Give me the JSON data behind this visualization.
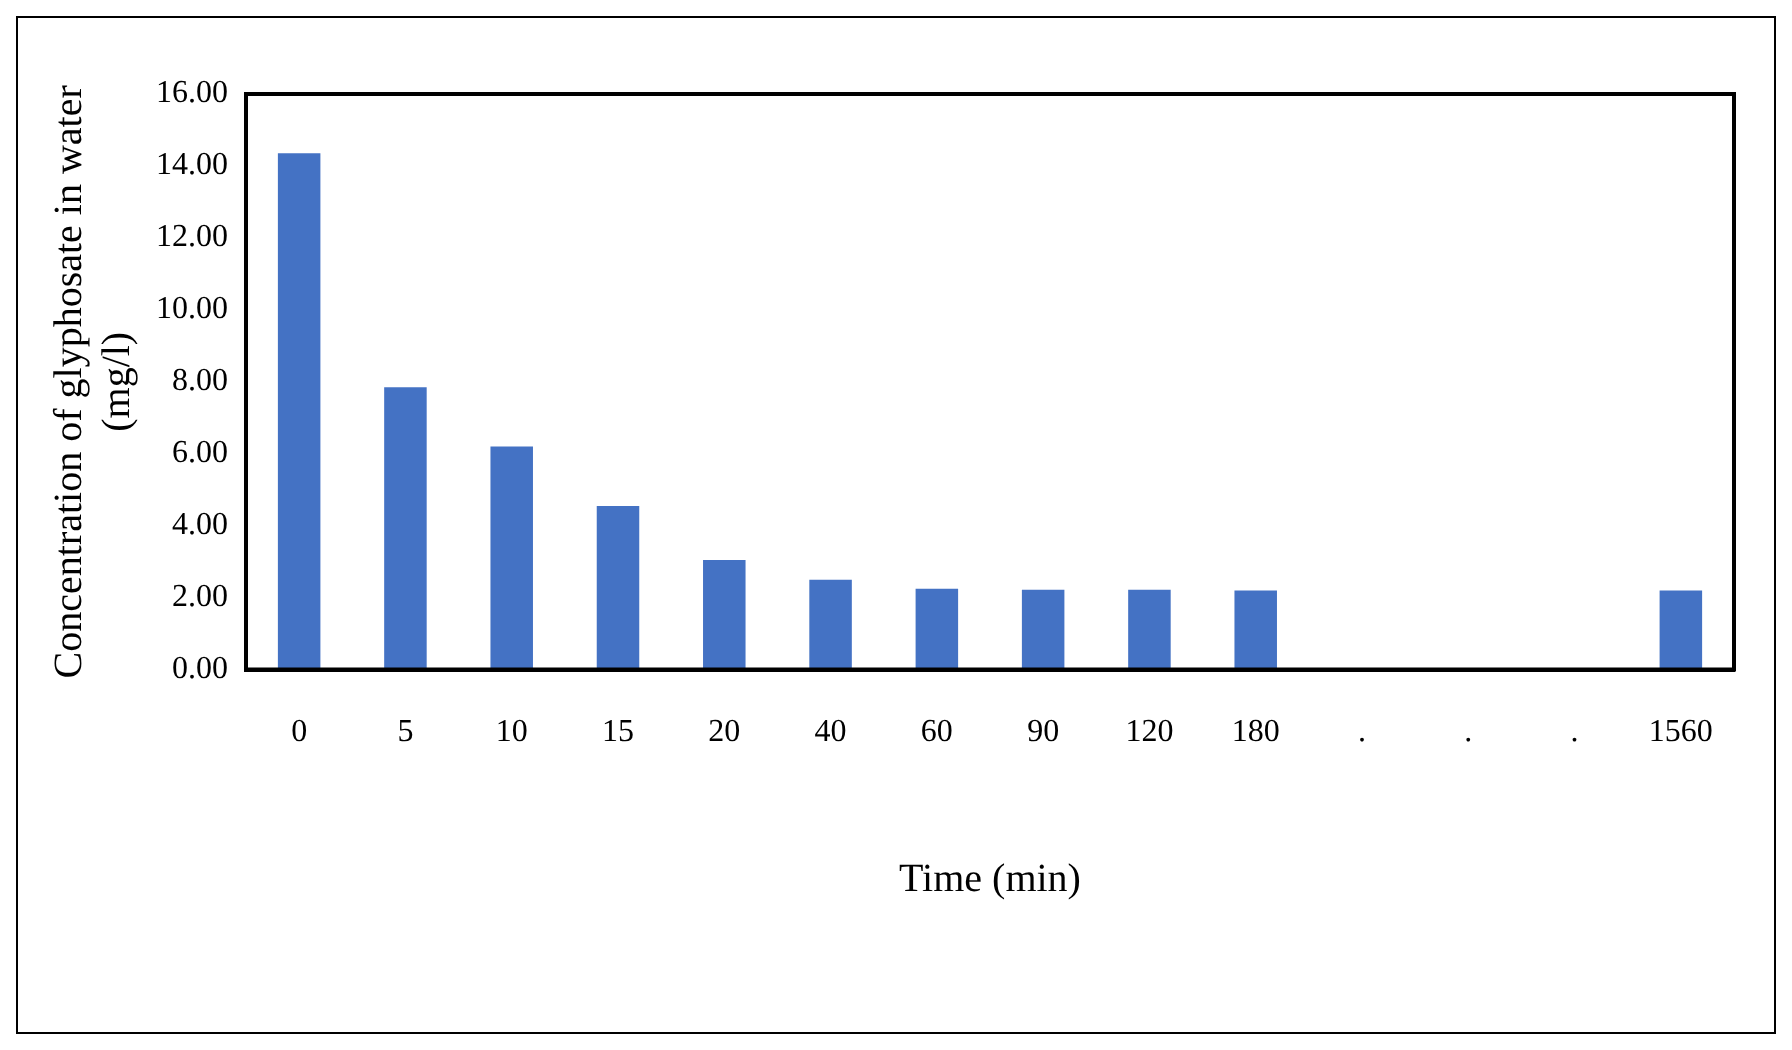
{
  "chart_data": {
    "type": "bar",
    "xlabel": "Time (min)",
    "ylabel": "Concentration of glyphosate in water\n(mg/l)",
    "categories": [
      "0",
      "5",
      "10",
      "15",
      "20",
      "40",
      "60",
      "90",
      "120",
      "180",
      ".",
      ".",
      ".",
      "1560"
    ],
    "values": [
      14.35,
      7.85,
      6.2,
      4.55,
      3.05,
      2.5,
      2.25,
      2.22,
      2.22,
      2.2,
      null,
      null,
      null,
      2.2
    ],
    "color": "#4472c4",
    "ylim": [
      0,
      16
    ],
    "yticks": [
      {
        "value": 0,
        "label": "0.00"
      },
      {
        "value": 2,
        "label": "2.00"
      },
      {
        "value": 4,
        "label": "4.00"
      },
      {
        "value": 6,
        "label": "6.00"
      },
      {
        "value": 8,
        "label": "8.00"
      },
      {
        "value": 10,
        "label": "10.00"
      },
      {
        "value": 12,
        "label": "12.00"
      },
      {
        "value": 14,
        "label": "14.00"
      },
      {
        "value": 16,
        "label": "16.00"
      }
    ],
    "grid": false,
    "legend": false
  }
}
